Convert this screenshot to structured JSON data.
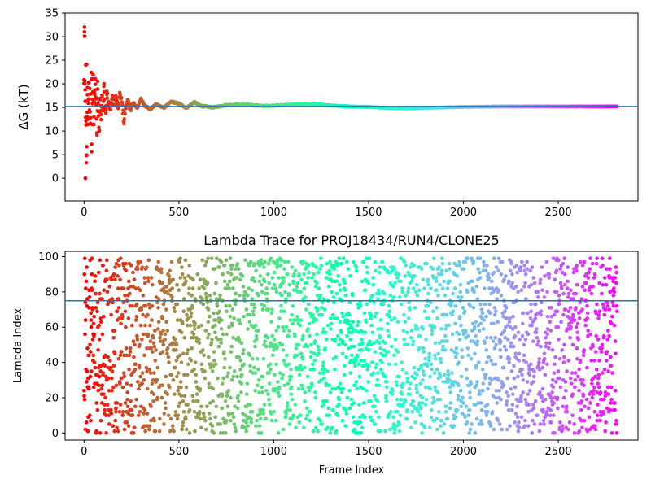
{
  "chart_data": [
    {
      "type": "scatter",
      "title": "",
      "xlabel": "",
      "ylabel": "ΔG (kT)",
      "xlim": [
        -100,
        2920
      ],
      "ylim": [
        -4.8,
        35
      ],
      "xticks": [
        0,
        500,
        1000,
        1500,
        2000,
        2500
      ],
      "yticks": [
        0,
        5,
        10,
        15,
        20,
        25,
        30,
        35
      ],
      "reference_line": {
        "y": 15.2,
        "color": "#1f77b4"
      },
      "colormap": "rainbow_r",
      "frames": 2810,
      "series": [
        {
          "samples_y": [
            [
              0,
              20.1
            ],
            [
              2,
              32.0
            ],
            [
              3,
              30.1
            ],
            [
              4,
              20.0
            ],
            [
              6,
              16.3
            ],
            [
              7,
              0.0
            ],
            [
              9,
              24.0
            ],
            [
              10,
              11.3
            ],
            [
              12,
              4.8
            ],
            [
              13,
              24.1
            ],
            [
              14,
              4.9
            ],
            [
              16,
              13.0
            ],
            [
              18,
              17.7
            ],
            [
              20,
              11.4
            ],
            [
              22,
              16.6
            ],
            [
              25,
              20.2
            ],
            [
              28,
              14.1
            ],
            [
              30,
              19.0
            ],
            [
              34,
              11.6
            ],
            [
              38,
              21.0
            ],
            [
              40,
              7.2
            ],
            [
              44,
              15.8
            ],
            [
              48,
              21.9
            ],
            [
              52,
              11.4
            ],
            [
              56,
              18.0
            ],
            [
              60,
              19.9
            ],
            [
              64,
              16.8
            ],
            [
              68,
              9.6
            ],
            [
              72,
              18.9
            ],
            [
              76,
              13.2
            ],
            [
              80,
              10.2
            ],
            [
              85,
              16.9
            ],
            [
              90,
              12.4
            ],
            [
              95,
              17.6
            ],
            [
              100,
              14.3
            ],
            [
              105,
              20.0
            ],
            [
              110,
              15.1
            ],
            [
              115,
              13.8
            ],
            [
              120,
              18.4
            ],
            [
              130,
              16.2
            ],
            [
              140,
              14.5
            ],
            [
              150,
              17.4
            ],
            [
              160,
              15.6
            ],
            [
              170,
              16.9
            ],
            [
              180,
              14.8
            ],
            [
              190,
              17.8
            ],
            [
              200,
              16.0
            ],
            [
              210,
              12.0
            ],
            [
              220,
              15.2
            ],
            [
              230,
              16.6
            ],
            [
              240,
              14.7
            ],
            [
              260,
              15.9
            ],
            [
              280,
              14.9
            ],
            [
              300,
              16.8
            ],
            [
              320,
              15.4
            ],
            [
              350,
              14.6
            ],
            [
              380,
              15.7
            ],
            [
              420,
              14.9
            ],
            [
              460,
              16.2
            ],
            [
              500,
              15.8
            ],
            [
              540,
              14.9
            ],
            [
              580,
              16.1
            ],
            [
              620,
              15.3
            ],
            [
              680,
              15.0
            ],
            [
              750,
              15.5
            ],
            [
              850,
              15.6
            ],
            [
              950,
              15.3
            ],
            [
              1050,
              15.5
            ],
            [
              1150,
              15.7
            ],
            [
              1200,
              15.8
            ],
            [
              1300,
              15.4
            ],
            [
              1400,
              15.2
            ],
            [
              1500,
              15.1
            ],
            [
              1600,
              14.9
            ],
            [
              1700,
              14.8
            ],
            [
              1800,
              14.9
            ],
            [
              1900,
              15.0
            ],
            [
              2000,
              15.1
            ],
            [
              2200,
              15.2
            ],
            [
              2400,
              15.2
            ],
            [
              2600,
              15.2
            ],
            [
              2810,
              15.2
            ]
          ]
        }
      ]
    },
    {
      "type": "scatter",
      "title": "Lambda Trace for PROJ18434/RUN4/CLONE25",
      "xlabel": "Frame Index",
      "ylabel": "Lambda Index",
      "xlim": [
        -100,
        2920
      ],
      "ylim": [
        -4,
        103
      ],
      "xticks": [
        0,
        500,
        1000,
        1500,
        2000,
        2500
      ],
      "yticks": [
        0,
        20,
        40,
        60,
        80,
        100
      ],
      "reference_line": {
        "y": 75,
        "color": "#1f77b4"
      },
      "colormap": "rainbow_r",
      "frames": 2810,
      "y_range": [
        0,
        99
      ],
      "point_count": 2810
    }
  ]
}
